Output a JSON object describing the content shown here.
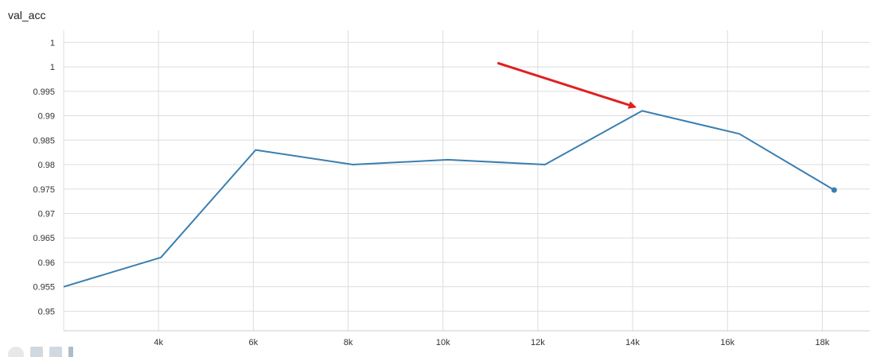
{
  "chart_data": {
    "type": "line",
    "title": "val_acc",
    "xlabel": "",
    "ylabel": "",
    "x_tick_labels": [
      "4k",
      "6k",
      "8k",
      "10k",
      "12k",
      "14k",
      "16k",
      "18k"
    ],
    "x_ticks": [
      4000,
      6000,
      8000,
      10000,
      12000,
      14000,
      16000,
      18000
    ],
    "y_tick_labels": [
      "0.95",
      "0.955",
      "0.96",
      "0.965",
      "0.97",
      "0.975",
      "0.98",
      "0.985",
      "0.99",
      "0.995",
      "1",
      "1"
    ],
    "y_ticks": [
      0.95,
      0.955,
      0.96,
      0.965,
      0.97,
      0.975,
      0.98,
      0.985,
      0.99,
      0.995,
      1.0,
      1.005
    ],
    "xlim": [
      2000,
      19000
    ],
    "ylim": [
      0.946,
      1.0075
    ],
    "grid": true,
    "series": [
      {
        "color": "#3a7fb0",
        "x": [
          2000,
          4050,
          6050,
          8100,
          10100,
          12150,
          14200,
          16250,
          18250
        ],
        "y": [
          0.955,
          0.961,
          0.983,
          0.98,
          0.981,
          0.98,
          0.991,
          0.9863,
          0.9748
        ]
      }
    ],
    "annotation": {
      "type": "arrow",
      "color": "#e02020",
      "from": [
        11150,
        1.0008
      ],
      "to": [
        14050,
        0.9918
      ]
    }
  }
}
